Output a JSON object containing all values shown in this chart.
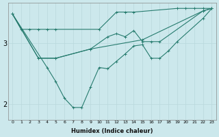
{
  "xlabel": "Humidex (Indice chaleur)",
  "bg_color": "#cce8ec",
  "line_color": "#267b6e",
  "grid_color": "#b8d8dc",
  "xlim": [
    -0.5,
    23.5
  ],
  "ylim": [
    1.75,
    3.65
  ],
  "yticks": [
    2,
    3
  ],
  "xticks": [
    0,
    1,
    2,
    3,
    4,
    5,
    6,
    7,
    8,
    9,
    10,
    11,
    12,
    13,
    14,
    15,
    16,
    17,
    18,
    19,
    20,
    21,
    22,
    23
  ],
  "line1_x": [
    0,
    1,
    2,
    3,
    4,
    5,
    10,
    12,
    13,
    14,
    19,
    20,
    21,
    22,
    23
  ],
  "line1_y": [
    3.47,
    3.22,
    3.22,
    3.22,
    3.22,
    3.22,
    3.22,
    3.5,
    3.5,
    3.5,
    3.56,
    3.56,
    3.56,
    3.56,
    3.56
  ],
  "line2_x": [
    0,
    3,
    5,
    9,
    11,
    12,
    13,
    14,
    15,
    16,
    17,
    22,
    23
  ],
  "line2_y": [
    3.47,
    2.75,
    2.75,
    2.9,
    3.1,
    3.15,
    3.1,
    3.2,
    3.02,
    3.02,
    3.02,
    3.52,
    3.56
  ],
  "line3_x": [
    0,
    3,
    5,
    9,
    15,
    22,
    23
  ],
  "line3_y": [
    3.47,
    2.75,
    2.75,
    2.9,
    3.05,
    3.52,
    3.56
  ],
  "line4_x": [
    0,
    4,
    5,
    6,
    7,
    8,
    9,
    10,
    11,
    12,
    13,
    14,
    15,
    16,
    17,
    18,
    19,
    22,
    23
  ],
  "line4_y": [
    3.47,
    2.6,
    2.37,
    2.1,
    1.95,
    1.95,
    2.28,
    2.6,
    2.58,
    2.7,
    2.82,
    2.95,
    2.97,
    2.75,
    2.75,
    2.87,
    3.02,
    3.4,
    3.56
  ]
}
